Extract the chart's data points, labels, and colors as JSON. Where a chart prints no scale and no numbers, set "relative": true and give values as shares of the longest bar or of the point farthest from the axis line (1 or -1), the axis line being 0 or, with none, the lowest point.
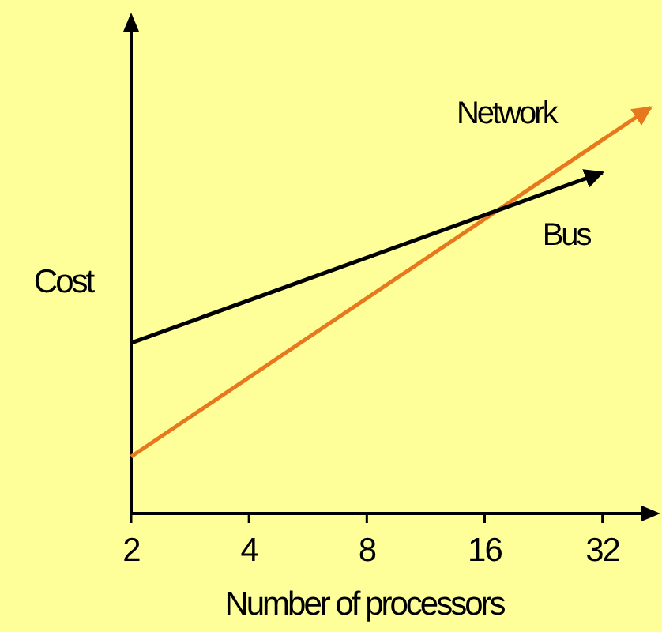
{
  "chart_data": {
    "type": "line",
    "xlabel": "Number of processors",
    "ylabel": "Cost",
    "relative": true,
    "log": "x",
    "xlim": [
      2,
      45
    ],
    "xticks": [
      2,
      4,
      8,
      16,
      32
    ],
    "grid": false,
    "marker": "none",
    "line_style": "solid",
    "series": [
      {
        "name": "Network",
        "color": "#e8781e",
        "x": [
          2,
          42.5
        ],
        "values": [
          0.14,
          1
        ]
      },
      {
        "name": "Bus",
        "color": "#000000",
        "x": [
          2,
          32
        ],
        "values": [
          0.42,
          0.84
        ]
      }
    ]
  }
}
